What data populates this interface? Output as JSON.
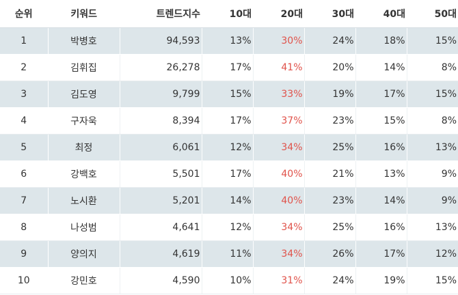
{
  "headers": {
    "rank": "순위",
    "keyword": "키워드",
    "trend": "트렌드지수",
    "age10": "10대",
    "age20": "20대",
    "age30": "30대",
    "age40": "40대",
    "age50": "50대"
  },
  "highlight_color": "#e0524a",
  "rows": [
    {
      "rank": "1",
      "keyword": "박병호",
      "trend": "94,593",
      "age10": "13%",
      "age20": "30%",
      "age30": "24%",
      "age40": "18%",
      "age50": "15%"
    },
    {
      "rank": "2",
      "keyword": "김휘집",
      "trend": "26,278",
      "age10": "17%",
      "age20": "41%",
      "age30": "20%",
      "age40": "14%",
      "age50": "8%"
    },
    {
      "rank": "3",
      "keyword": "김도영",
      "trend": "9,799",
      "age10": "15%",
      "age20": "33%",
      "age30": "19%",
      "age40": "17%",
      "age50": "15%"
    },
    {
      "rank": "4",
      "keyword": "구자욱",
      "trend": "8,394",
      "age10": "17%",
      "age20": "37%",
      "age30": "23%",
      "age40": "15%",
      "age50": "8%"
    },
    {
      "rank": "5",
      "keyword": "최정",
      "trend": "6,061",
      "age10": "12%",
      "age20": "34%",
      "age30": "25%",
      "age40": "16%",
      "age50": "13%"
    },
    {
      "rank": "6",
      "keyword": "강백호",
      "trend": "5,501",
      "age10": "17%",
      "age20": "40%",
      "age30": "21%",
      "age40": "13%",
      "age50": "9%"
    },
    {
      "rank": "7",
      "keyword": "노시환",
      "trend": "5,201",
      "age10": "14%",
      "age20": "40%",
      "age30": "23%",
      "age40": "14%",
      "age50": "9%"
    },
    {
      "rank": "8",
      "keyword": "나성범",
      "trend": "4,641",
      "age10": "12%",
      "age20": "34%",
      "age30": "25%",
      "age40": "16%",
      "age50": "13%"
    },
    {
      "rank": "9",
      "keyword": "양의지",
      "trend": "4,619",
      "age10": "11%",
      "age20": "34%",
      "age30": "26%",
      "age40": "17%",
      "age50": "12%"
    },
    {
      "rank": "10",
      "keyword": "강민호",
      "trend": "4,590",
      "age10": "10%",
      "age20": "31%",
      "age30": "24%",
      "age40": "19%",
      "age50": "15%"
    }
  ]
}
